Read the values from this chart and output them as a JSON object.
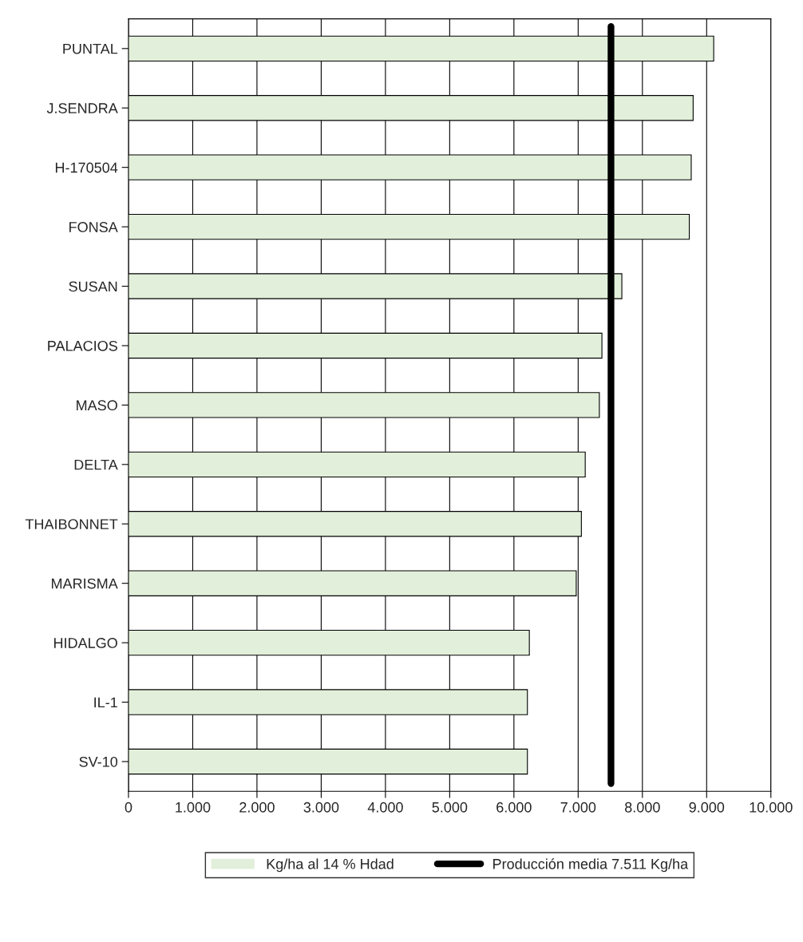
{
  "chart_data": {
    "type": "bar",
    "orientation": "horizontal",
    "categories": [
      "PUNTAL",
      "J.SENDRA",
      "H-170504",
      "FONSA",
      "SUSAN",
      "PALACIOS",
      "MASO",
      "DELTA",
      "THAIBONNET",
      "MARISMA",
      "HIDALGO",
      "IL-1",
      "SV-10"
    ],
    "series": [
      {
        "name": "Kg/ha al 14 % Hdad",
        "color": "#e2efda",
        "values": [
          9110,
          8790,
          8760,
          8730,
          7680,
          7370,
          7330,
          7110,
          7050,
          6970,
          6240,
          6210,
          6210
        ]
      }
    ],
    "xlim": [
      0,
      10000
    ],
    "xticks": [
      0,
      {
        "value": 1000,
        "label": "1.000"
      },
      {
        "value": 2000,
        "label": "2.000"
      },
      {
        "value": 3000,
        "label": "3.000"
      },
      {
        "value": 4000,
        "label": "4.000"
      },
      {
        "value": 5000,
        "label": "5.000"
      },
      {
        "value": 6000,
        "label": "6.000"
      },
      {
        "value": 7000,
        "label": "7.000"
      },
      {
        "value": 8000,
        "label": "8.000"
      },
      {
        "value": 9000,
        "label": "9.000"
      },
      {
        "value": 10000,
        "label": "10.000"
      }
    ],
    "ref_lines": [
      {
        "axis": "x",
        "value": 7511,
        "label": "Producción media 7.511 Kg/ha",
        "color": "#000000",
        "line_style": "solid"
      }
    ],
    "grid": "x",
    "legend": "bottom"
  }
}
